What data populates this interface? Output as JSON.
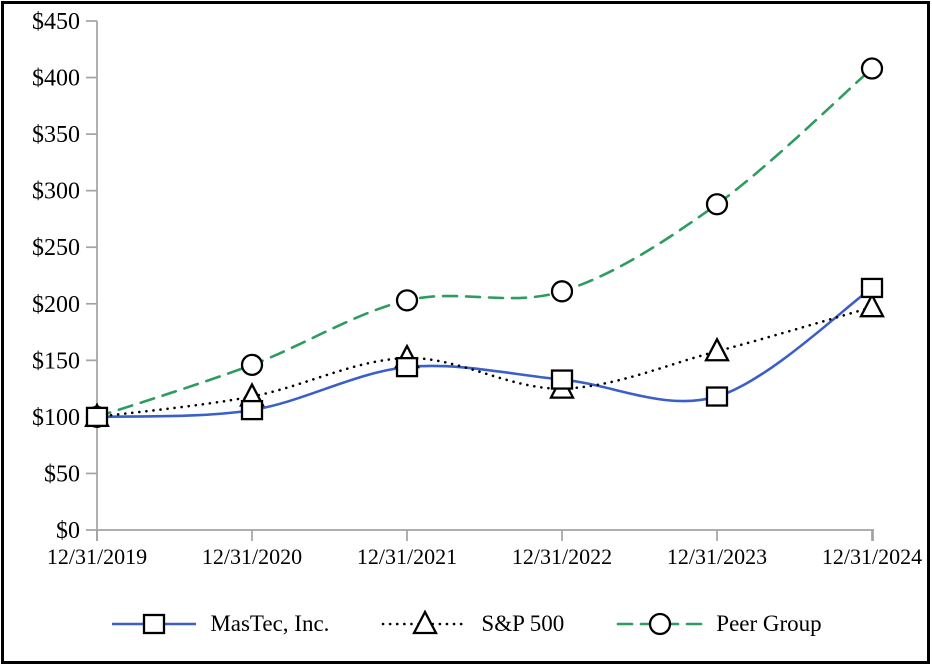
{
  "chart_data": {
    "type": "line",
    "title": "",
    "x_categories": [
      "12/31/2019",
      "12/31/2020",
      "12/31/2021",
      "12/31/2022",
      "12/31/2023",
      "12/31/2024"
    ],
    "series": [
      {
        "name": "MasTec, Inc.",
        "values": [
          100,
          106,
          144,
          133,
          118,
          214
        ],
        "color": "#3B5FC9",
        "line_style": "solid",
        "marker": "square"
      },
      {
        "name": "S&P 500",
        "values": [
          100,
          118,
          152,
          125,
          158,
          197
        ],
        "color": "#000000",
        "line_style": "dotted",
        "marker": "triangle"
      },
      {
        "name": "Peer Group",
        "values": [
          100,
          146,
          203,
          211,
          288,
          408
        ],
        "color": "#2E9C60",
        "line_style": "dashed",
        "marker": "circle"
      }
    ],
    "ylim": [
      0,
      450
    ],
    "y_tick_step": 50,
    "y_tick_labels": [
      "$0",
      "$50",
      "$100",
      "$150",
      "$200",
      "$250",
      "$300",
      "$350",
      "$400",
      "$450"
    ],
    "grid": false,
    "legend_position": "bottom",
    "axis_color": "#A3A3A3",
    "text_color": "#000000",
    "marker_fill": "#FFFFFF",
    "marker_stroke": "#000000",
    "frame_color": "#000000"
  }
}
